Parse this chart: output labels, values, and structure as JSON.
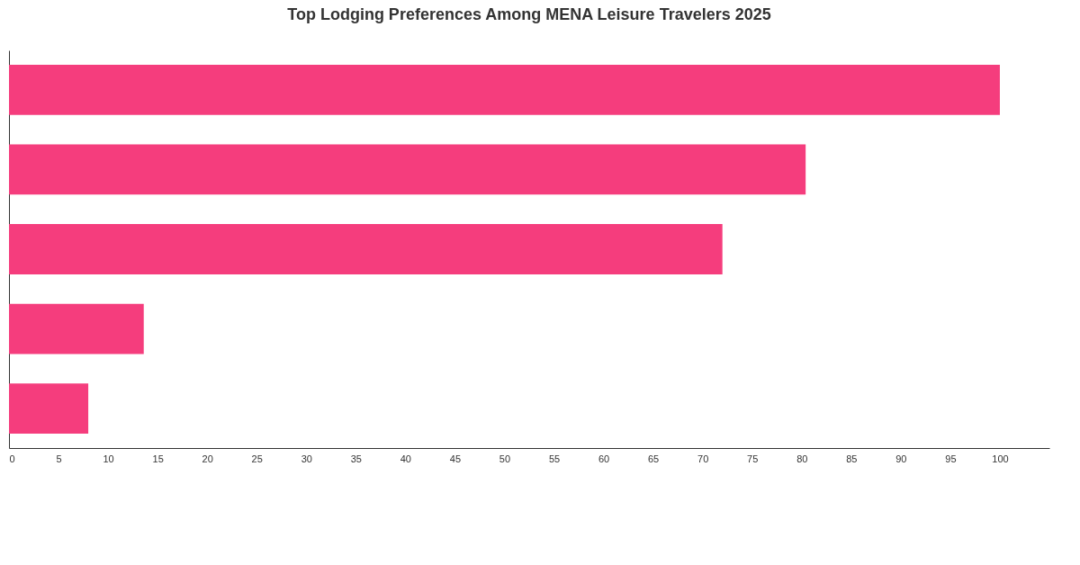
{
  "chart_data": {
    "type": "bar",
    "orientation": "horizontal",
    "title": "Top Lodging Preferences Among MENA Leisure Travelers 2025",
    "categories": [
      null,
      null,
      null,
      null,
      null
    ],
    "values": [
      100,
      80.4,
      72,
      13.6,
      8
    ],
    "color": "#f53d7d",
    "xlim": [
      0,
      105
    ],
    "xticks": [
      0,
      5,
      10,
      15,
      20,
      25,
      30,
      35,
      40,
      45,
      50,
      55,
      60,
      65,
      70,
      75,
      80,
      85,
      90,
      95,
      100
    ],
    "tick_labels": "x",
    "grid": false
  }
}
